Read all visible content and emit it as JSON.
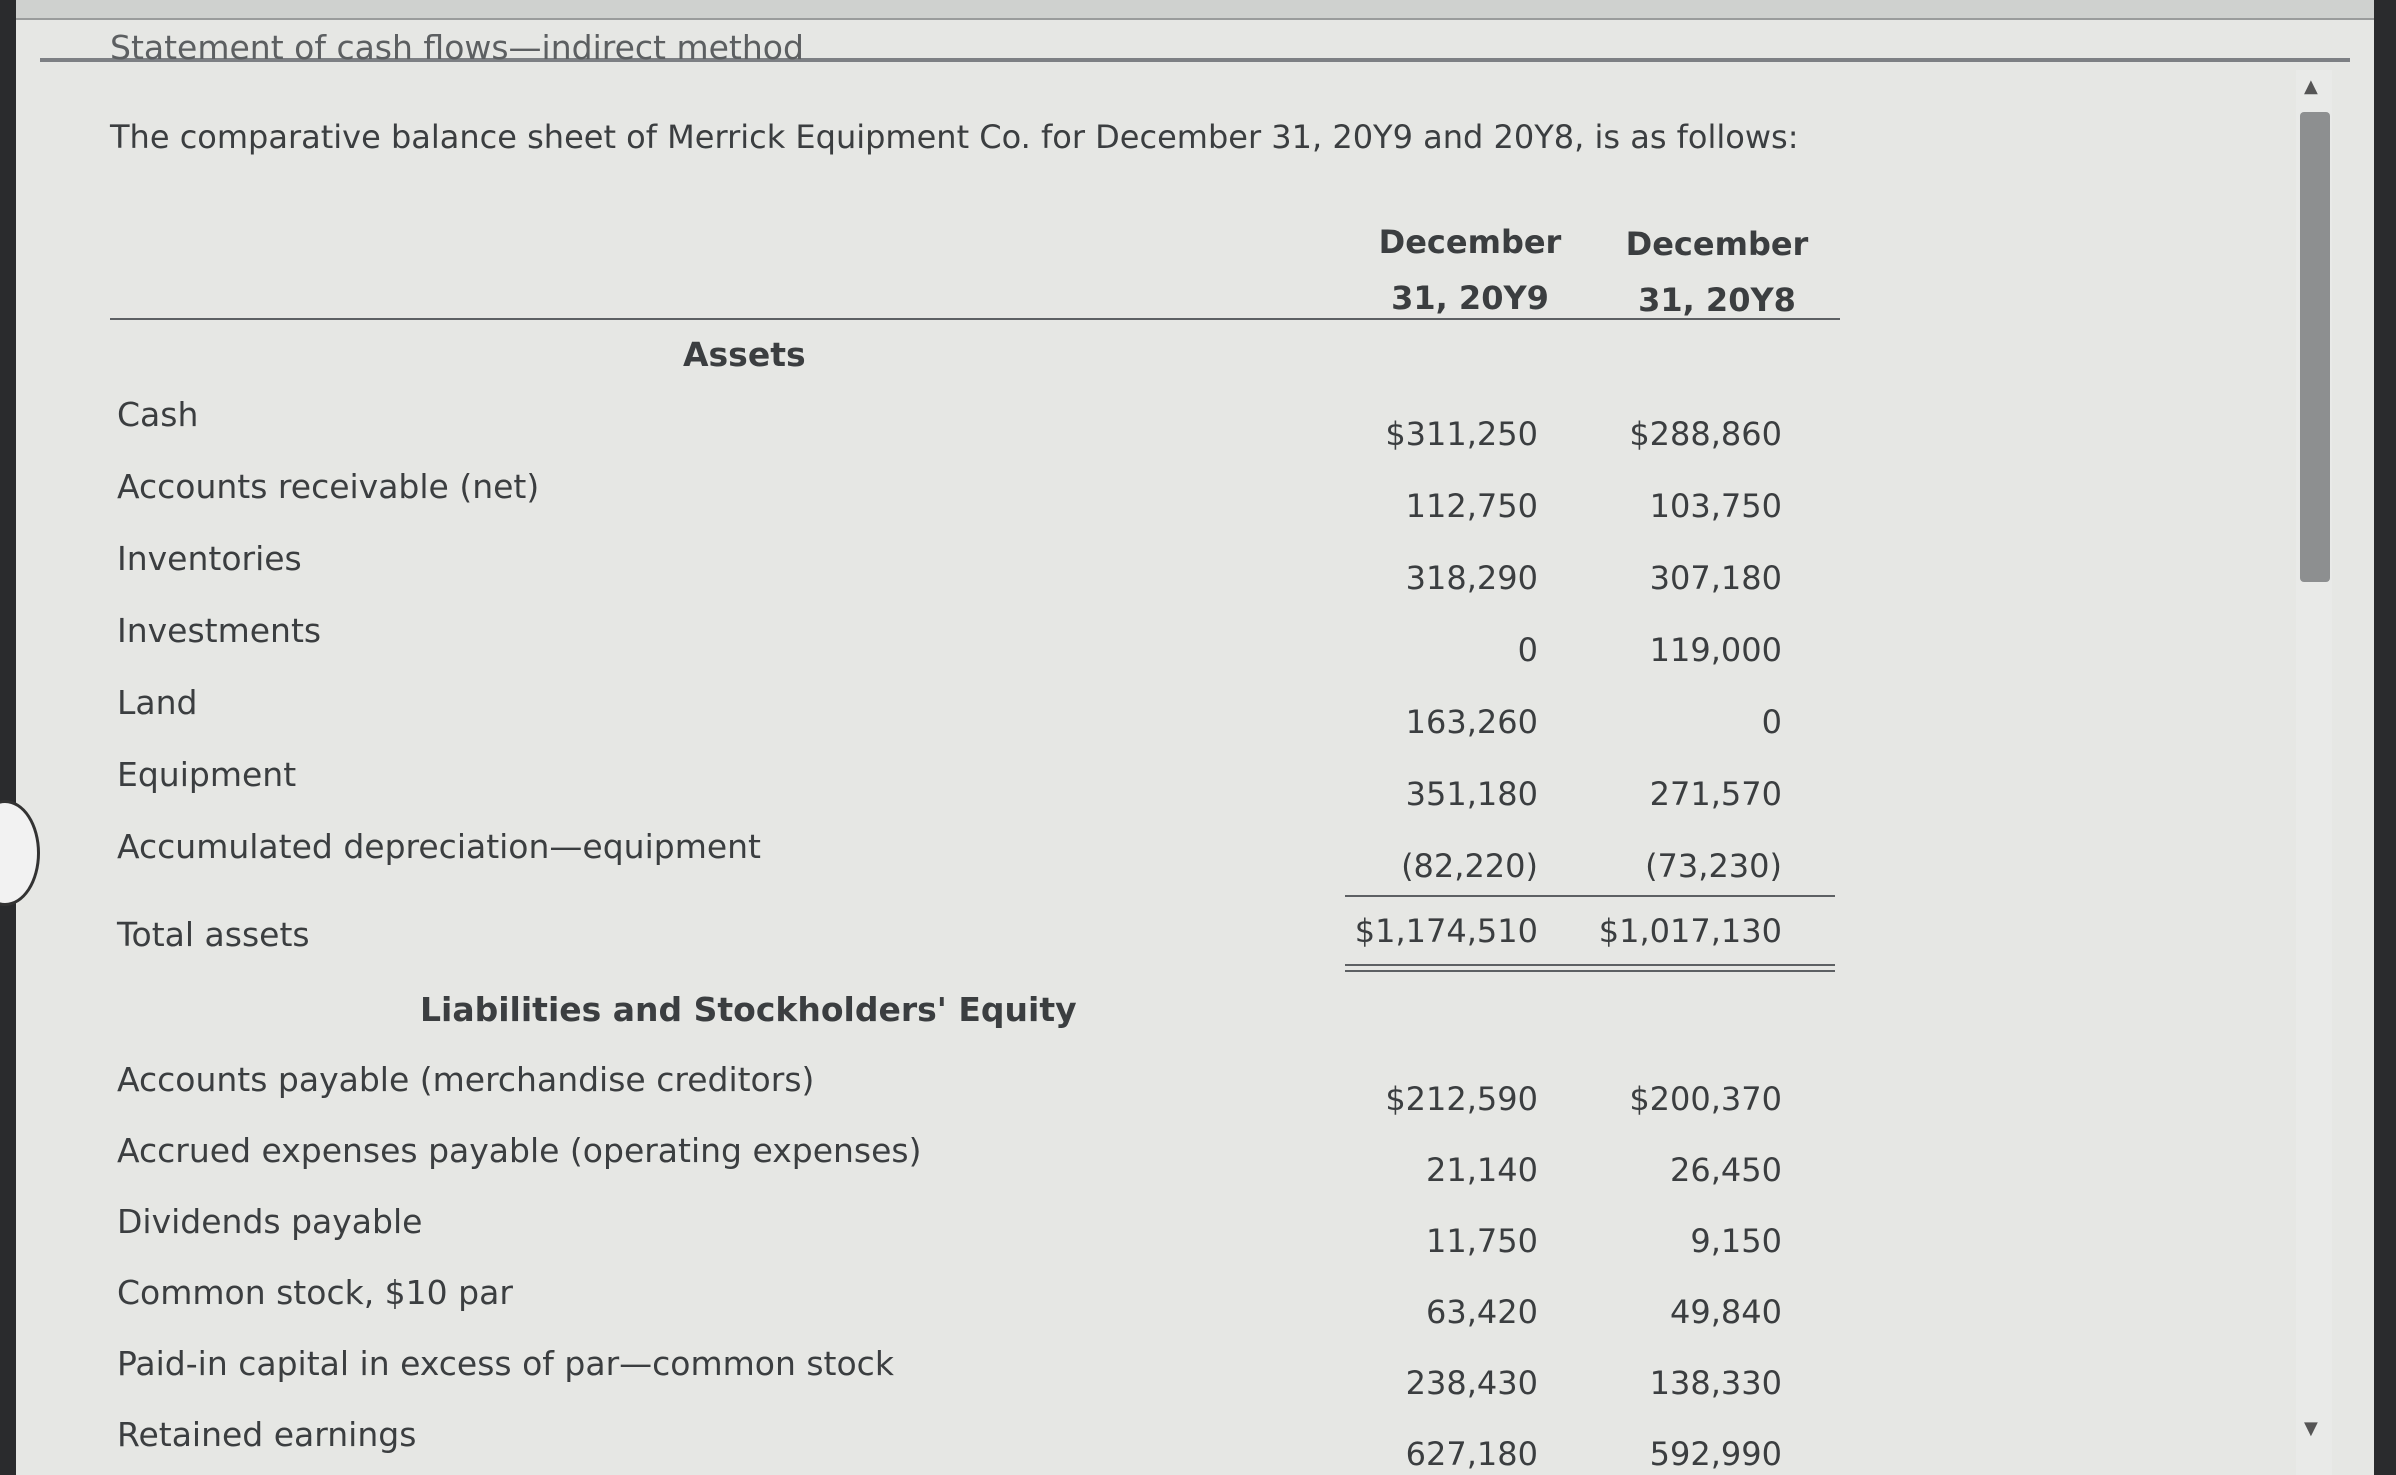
{
  "title": "Statement of cash flows—indirect method",
  "intro": "The comparative balance sheet of Merrick Equipment Co. for December 31, 20Y9 and 20Y8, is as follows:",
  "columns": [
    {
      "line1": "December",
      "line2": "31, 20Y9"
    },
    {
      "line1": "December",
      "line2": "31, 20Y8"
    }
  ],
  "assets_heading": "Assets",
  "assets": [
    {
      "label": "Cash",
      "y9": "$311,250",
      "y8": "$288,860"
    },
    {
      "label": "Accounts receivable (net)",
      "y9": "112,750",
      "y8": "103,750"
    },
    {
      "label": "Inventories",
      "y9": "318,290",
      "y8": "307,180"
    },
    {
      "label": "Investments",
      "y9": "0",
      "y8": "119,000"
    },
    {
      "label": "Land",
      "y9": "163,260",
      "y8": "0"
    },
    {
      "label": "Equipment",
      "y9": "351,180",
      "y8": "271,570"
    },
    {
      "label": "Accumulated depreciation—equipment",
      "y9": "(82,220)",
      "y8": "(73,230)"
    }
  ],
  "total_assets": {
    "label": "Total assets",
    "y9": "$1,174,510",
    "y8": "$1,017,130"
  },
  "liabilities_heading": "Liabilities and Stockholders' Equity",
  "liabilities": [
    {
      "label": "Accounts payable (merchandise creditors)",
      "y9": "$212,590",
      "y8": "$200,370"
    },
    {
      "label": "Accrued expenses payable (operating expenses)",
      "y9": "21,140",
      "y8": "26,450"
    },
    {
      "label": "Dividends payable",
      "y9": "11,750",
      "y8": "9,150"
    },
    {
      "label": "Common stock, $10 par",
      "y9": "63,420",
      "y8": "49,840"
    },
    {
      "label": "Paid-in capital in excess of par—common stock",
      "y9": "238,430",
      "y8": "138,330"
    },
    {
      "label": "Retained earnings",
      "y9": "627,180",
      "y8": "592,990"
    }
  ]
}
